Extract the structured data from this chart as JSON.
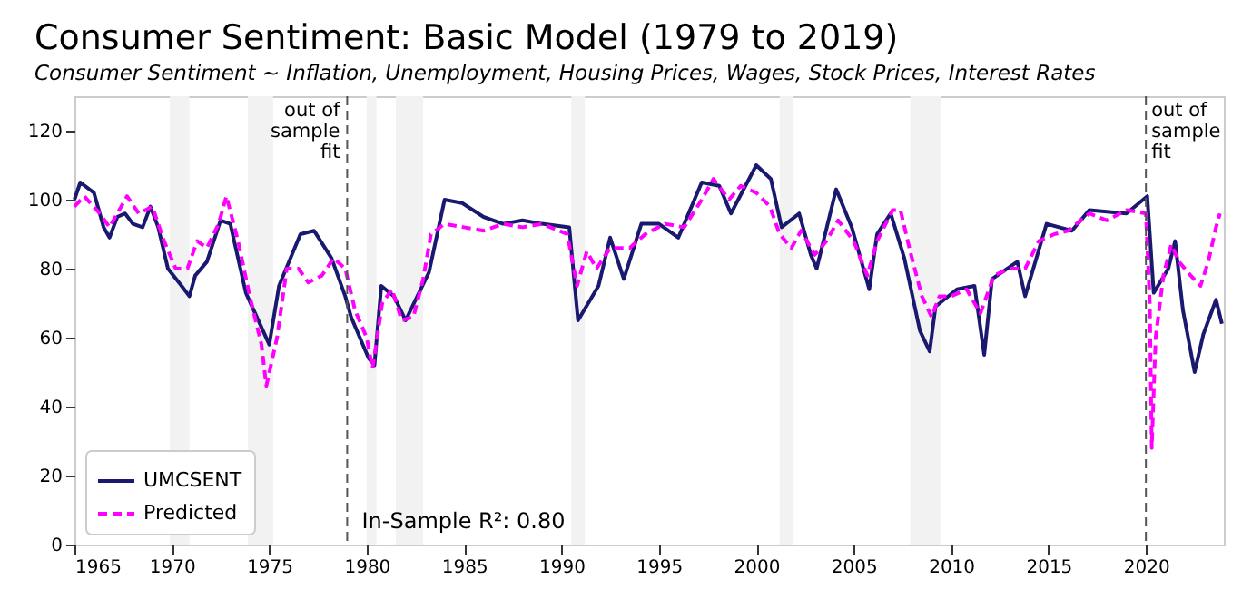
{
  "chart_data": {
    "type": "line",
    "title": "Consumer Sentiment: Basic Model (1979 to 2019)",
    "subtitle": "Consumer Sentiment ~ Inflation, Unemployment, Housing Prices, Wages, Stock Prices, Interest Rates",
    "xlim": [
      1965,
      2024
    ],
    "xticks": [
      1965,
      1970,
      1975,
      1980,
      1985,
      1990,
      1995,
      2000,
      2005,
      2010,
      2015,
      2020
    ],
    "ylim": [
      0,
      130
    ],
    "yticks": [
      0,
      20,
      40,
      60,
      80,
      100,
      120
    ],
    "legend": "bottom left",
    "grid": false,
    "series": [
      {
        "name": "UMCSENT",
        "color": "#191970",
        "line_style": "solid",
        "x": [
          1965.0,
          1965.3,
          1966.0,
          1966.5,
          1966.8,
          1967.2,
          1967.6,
          1968.0,
          1968.5,
          1968.9,
          1969.3,
          1969.8,
          1970.5,
          1970.9,
          1971.2,
          1971.8,
          1972.5,
          1973.0,
          1973.8,
          1974.2,
          1975.0,
          1975.5,
          1976.6,
          1977.3,
          1978.2,
          1978.9,
          1979.2,
          1980.1,
          1980.4,
          1980.75,
          1981.4,
          1982.0,
          1982.6,
          1983.2,
          1984.0,
          1984.9,
          1986.0,
          1987.0,
          1988.0,
          1989.0,
          1990.4,
          1990.85,
          1991.9,
          1992.5,
          1993.2,
          1994.1,
          1995.0,
          1996.0,
          1997.2,
          1998.1,
          1998.7,
          2000.0,
          2000.75,
          2001.3,
          2002.2,
          2002.8,
          2003.1,
          2004.1,
          2004.9,
          2005.8,
          2006.2,
          2006.9,
          2007.6,
          2008.4,
          2008.9,
          2009.2,
          2010.3,
          2011.2,
          2011.7,
          2012.1,
          2013.4,
          2013.8,
          2014.9,
          2016.2,
          2017.1,
          2019.0,
          2020.07,
          2020.4,
          2021.15,
          2021.5,
          2021.9,
          2022.5,
          2022.95,
          2023.6,
          2023.9
        ],
        "values": [
          100,
          105,
          102,
          92,
          89,
          95,
          96,
          93,
          92,
          98,
          92,
          80,
          75,
          72,
          78,
          82,
          94,
          93,
          73,
          68,
          58,
          75,
          90,
          91,
          83,
          72,
          66,
          54,
          52,
          75,
          72,
          65,
          72,
          79,
          100,
          99,
          95,
          93,
          94,
          93,
          92,
          65,
          75,
          89,
          77,
          93,
          93,
          89,
          105,
          104,
          96,
          110,
          106,
          92,
          96,
          84,
          80,
          103,
          92,
          74,
          90,
          96,
          83,
          62,
          56,
          69,
          74,
          75,
          55,
          77,
          82,
          72,
          93,
          91,
          97,
          96,
          101,
          73,
          80,
          88,
          68,
          50,
          61,
          71,
          64
        ]
      },
      {
        "name": "Predicted",
        "color": "#ff00ff",
        "line_style": "dashed",
        "x": [
          1965.0,
          1965.5,
          1966.3,
          1966.8,
          1967.7,
          1968.3,
          1969.0,
          1969.6,
          1970.2,
          1970.8,
          1971.3,
          1971.8,
          1972.4,
          1972.8,
          1973.4,
          1974.0,
          1974.6,
          1974.85,
          1975.4,
          1975.9,
          1976.5,
          1977.0,
          1977.7,
          1978.3,
          1978.9,
          1979.4,
          1980.0,
          1980.3,
          1980.8,
          1981.3,
          1981.8,
          1982.4,
          1982.9,
          1983.3,
          1984.0,
          1985.0,
          1986.0,
          1987.0,
          1988.0,
          1989.0,
          1990.3,
          1990.8,
          1991.3,
          1991.8,
          1992.5,
          1993.5,
          1994.3,
          1995.3,
          1996.3,
          1997.2,
          1997.8,
          1998.6,
          1999.2,
          2000.0,
          2000.7,
          2001.2,
          2001.8,
          2002.3,
          2003.0,
          2003.6,
          2004.2,
          2005.0,
          2005.7,
          2006.2,
          2007.0,
          2007.4,
          2007.9,
          2008.5,
          2009.0,
          2009.4,
          2010.0,
          2010.8,
          2011.5,
          2012.2,
          2013.0,
          2013.8,
          2014.5,
          2015.3,
          2016.0,
          2017.1,
          2018.0,
          2019.0,
          2020.0,
          2020.2,
          2020.3,
          2020.5,
          2020.9,
          2021.3,
          2021.7,
          2022.3,
          2022.8,
          2023.2,
          2023.6,
          2023.8
        ],
        "values": [
          98,
          101,
          96,
          92,
          101,
          96,
          98,
          88,
          80,
          80,
          88,
          86,
          93,
          101,
          88,
          72,
          58,
          46,
          60,
          80,
          80,
          76,
          78,
          83,
          80,
          68,
          60,
          51,
          70,
          74,
          65,
          66,
          77,
          90,
          93,
          92,
          91,
          93,
          92,
          93,
          90,
          75,
          85,
          80,
          86,
          86,
          90,
          93,
          92,
          100,
          106,
          100,
          104,
          102,
          98,
          90,
          86,
          91,
          84,
          88,
          94,
          88,
          78,
          88,
          97,
          97,
          85,
          72,
          66,
          72,
          72,
          74,
          67,
          78,
          80,
          80,
          88,
          90,
          91,
          96,
          94,
          97,
          96,
          70,
          28,
          60,
          78,
          87,
          82,
          78,
          75,
          82,
          92,
          96
        ]
      }
    ],
    "bands": [
      {
        "axis": "x",
        "from": 1969.9,
        "to": 1970.9,
        "color": "#f2f2f2"
      },
      {
        "axis": "x",
        "from": 1973.9,
        "to": 1975.2,
        "color": "#f2f2f2"
      },
      {
        "axis": "x",
        "from": 1980.0,
        "to": 1980.5,
        "color": "#f2f2f2"
      },
      {
        "axis": "x",
        "from": 1981.5,
        "to": 1982.9,
        "color": "#f2f2f2"
      },
      {
        "axis": "x",
        "from": 1990.5,
        "to": 1991.2,
        "color": "#f2f2f2"
      },
      {
        "axis": "x",
        "from": 2001.2,
        "to": 2001.9,
        "color": "#f2f2f2"
      },
      {
        "axis": "x",
        "from": 2007.9,
        "to": 2009.5,
        "color": "#f2f2f2"
      }
    ],
    "ref_lines": [
      {
        "axis": "x",
        "value": 1979,
        "label": "out of\nsample\nfit",
        "color": "#555555",
        "line_style": "dashed"
      },
      {
        "axis": "x",
        "value": 2020,
        "label": "out of\nsample\nfit",
        "color": "#555555",
        "line_style": "dashed"
      }
    ],
    "annotations": [
      "In-Sample R²: 0.80"
    ]
  }
}
